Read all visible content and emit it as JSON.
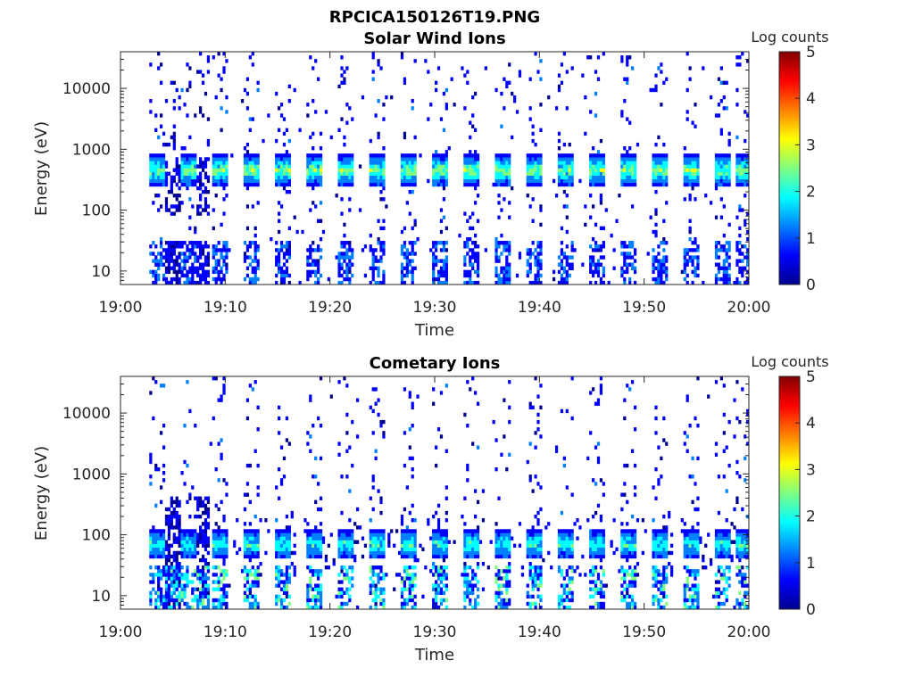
{
  "figure_title": "RPCICA150126T19.PNG",
  "colors": {
    "colormap": [
      "#00008f",
      "#0000ff",
      "#0080ff",
      "#00ffff",
      "#80ff80",
      "#ffff00",
      "#ff8000",
      "#ff0000",
      "#800000"
    ]
  },
  "chart_data": [
    {
      "type": "heatmap",
      "title": "Solar Wind Ions",
      "xlabel": "Time",
      "ylabel": "Energy (eV)",
      "x_ticks": [
        "19:00",
        "19:10",
        "19:20",
        "19:30",
        "19:40",
        "19:50",
        "20:00"
      ],
      "x_range_min": [
        0,
        60
      ],
      "y_scale": "log",
      "y_ticks": [
        "10",
        "100",
        "1000",
        "10000"
      ],
      "y_range": [
        6,
        40000
      ],
      "colorbar": {
        "label": "Log counts",
        "range": [
          0,
          5
        ],
        "ticks": [
          "0",
          "1",
          "2",
          "3",
          "4",
          "5"
        ]
      },
      "bursts_min": [
        3.5,
        6.5,
        9.5,
        12.5,
        15.5,
        18.5,
        21.5,
        24.5,
        27.5,
        30.5,
        33.5,
        36.5,
        39.5,
        42.5,
        45.5,
        48.5,
        51.5,
        54.5,
        57.5,
        59.5
      ],
      "main_energy_band_eV": 450,
      "log_counts_peak": 3
    },
    {
      "type": "heatmap",
      "title": "Cometary Ions",
      "xlabel": "Time",
      "ylabel": "Energy (eV)",
      "x_ticks": [
        "19:00",
        "19:10",
        "19:20",
        "19:30",
        "19:40",
        "19:50",
        "20:00"
      ],
      "x_range_min": [
        0,
        60
      ],
      "y_scale": "log",
      "y_ticks": [
        "10",
        "100",
        "1000",
        "10000"
      ],
      "y_range": [
        6,
        40000
      ],
      "colorbar": {
        "label": "Log counts",
        "range": [
          0,
          5
        ],
        "ticks": [
          "0",
          "1",
          "2",
          "3",
          "4",
          "5"
        ]
      },
      "bursts_min": [
        3.5,
        6.5,
        9.5,
        12.5,
        15.5,
        18.5,
        21.5,
        24.5,
        27.5,
        30.5,
        33.5,
        36.5,
        39.5,
        42.5,
        45.5,
        48.5,
        51.5,
        54.5,
        57.5,
        59.5
      ],
      "main_energy_band_eV": 70,
      "log_counts_peak": 2.5
    }
  ]
}
